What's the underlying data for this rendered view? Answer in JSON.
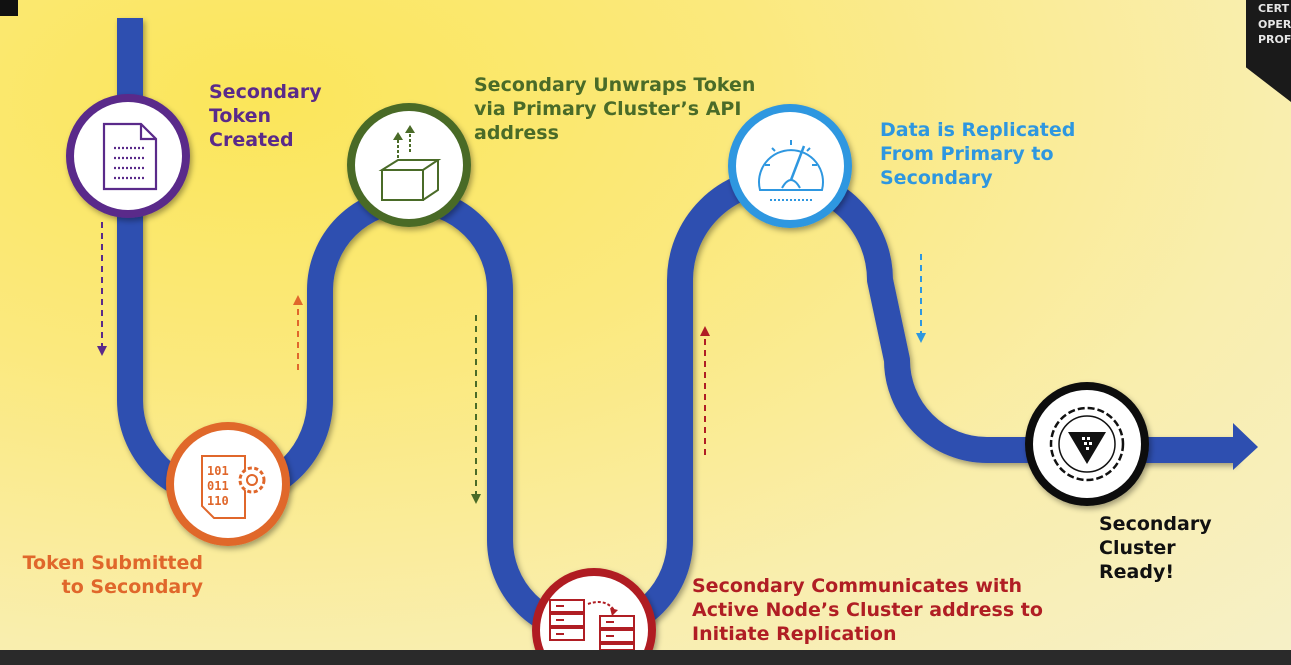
{
  "steps": [
    {
      "label": "Secondary Token Created",
      "lines": [
        "Secondary",
        "Token",
        "Created"
      ],
      "color": "#5a2a8a",
      "icon": "document-icon"
    },
    {
      "label": "Token Submitted to Secondary",
      "lines": [
        "Token Submitted",
        "to Secondary"
      ],
      "color": "#e0672b",
      "icon": "binary-gear-icon"
    },
    {
      "label": "Secondary Unwraps Token via Primary Cluster's API address",
      "lines": [
        "Secondary Unwraps Token",
        "via Primary Cluster’s API",
        "address"
      ],
      "color": "#4a6b28",
      "icon": "open-box-icon"
    },
    {
      "label": "Secondary Communicates with Active Node's Cluster address to Initiate Replication",
      "lines": [
        "Secondary Communicates with",
        "Active Node’s Cluster address to",
        "Initiate Replication"
      ],
      "color": "#b01e24",
      "icon": "servers-transfer-icon"
    },
    {
      "label": "Data is Replicated From Primary to Secondary",
      "lines": [
        "Data is Replicated",
        "From Primary to",
        "Secondary"
      ],
      "color": "#2e97e0",
      "icon": "speedometer-icon"
    },
    {
      "label": "Secondary Cluster Ready!",
      "lines": [
        "Secondary Cluster",
        "Ready!"
      ],
      "color": "#111111",
      "icon": "vault-badge-icon"
    }
  ],
  "corner": {
    "lines": [
      "CERT",
      "OPER",
      "PROF"
    ]
  },
  "colors": {
    "road": "#2e4fb0",
    "ready": "#111111"
  }
}
